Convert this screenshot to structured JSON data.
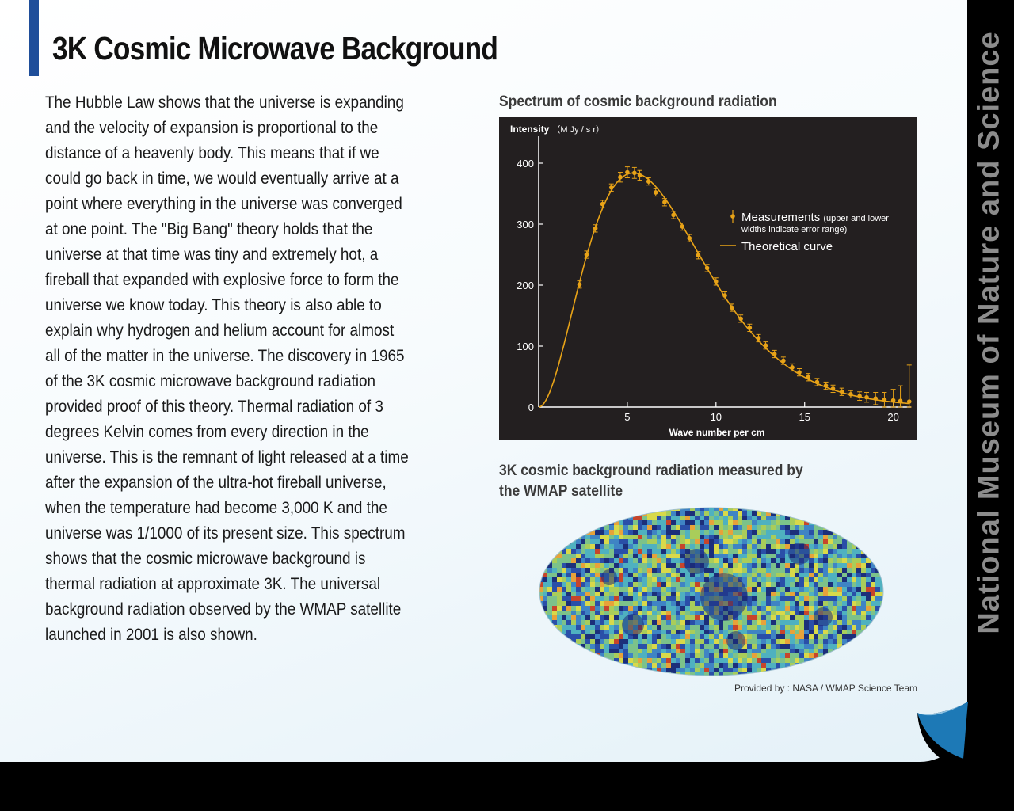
{
  "page": {
    "title": "3K Cosmic Microwave Background",
    "body_lines": [
      "The Hubble Law shows that the universe is expanding",
      "and the velocity of expansion is proportional to the",
      "distance of a heavenly body. This means that if we",
      "could go back in time, we would eventually arrive at a",
      "point where everything in the universe was converged",
      "at one point. The \"Big Bang\" theory holds that the",
      "universe at that time was tiny and extremely hot, a",
      "fireball that expanded with explosive force to form the",
      "universe we know today. This theory is also able to",
      "explain why hydrogen and helium account for almost",
      "all of the matter in the universe. The discovery in 1965",
      "of the 3K cosmic microwave background radiation",
      "provided proof of this theory. Thermal radiation of 3",
      "degrees Kelvin comes from every direction in the",
      "universe. This is the remnant of light released at a time",
      "after the expansion of the ultra-hot fireball universe,",
      "when the temperature had become 3,000 K and the",
      "universe was 1/1000 of its present size. This spectrum",
      "shows that the cosmic microwave background is",
      "thermal radiation at approximate 3K. The universal",
      "background radiation observed by the WMAP satellite",
      "launched in 2001 is also shown."
    ],
    "chart_caption": "Spectrum of cosmic background radiation",
    "map_caption_lines": [
      "3K cosmic background radiation measured by",
      "the WMAP satellite"
    ],
    "credit": "Provided by : NASA / WMAP Science Team",
    "sidebar_label": "National Museum of Nature and Science"
  },
  "colors": {
    "accent_bar": "#1f4e9a",
    "chart_bg": "#231f20",
    "curve": "#e8a317",
    "sidebar_text": "#8c8c8c",
    "page_curl": "#1f7fc0"
  },
  "chart_data": {
    "type": "line",
    "ylabel": "Intensity",
    "yunit": "（M Jy / s r）",
    "xlabel": "Wave number  per cm",
    "xlim": [
      0,
      21
    ],
    "ylim": [
      0,
      420
    ],
    "yticks": [
      0,
      100,
      200,
      300,
      400
    ],
    "xticks": [
      5,
      10,
      15,
      20
    ],
    "legend": {
      "position": "right",
      "measurements_label": "Measurements",
      "measurements_note_1": "(upper and lower",
      "measurements_note_2": "widths indicate error range)",
      "curve_label": "Theoretical curve"
    },
    "series": [
      {
        "name": "Measurements",
        "kind": "points-with-error",
        "x": [
          2.3,
          2.7,
          3.2,
          3.6,
          4.1,
          4.6,
          5.0,
          5.4,
          5.7,
          6.2,
          6.6,
          7.1,
          7.6,
          8.1,
          8.5,
          9.0,
          9.5,
          10.0,
          10.5,
          10.9,
          11.4,
          11.9,
          12.4,
          12.8,
          13.3,
          13.8,
          14.3,
          14.7,
          15.2,
          15.7,
          16.2,
          16.6,
          17.1,
          17.6,
          18.1,
          18.5,
          19.0,
          19.5,
          20.0,
          20.4,
          20.9
        ],
        "y": [
          201,
          250,
          293,
          333,
          360,
          377,
          385,
          384,
          380,
          370,
          352,
          336,
          315,
          296,
          277,
          249,
          228,
          206,
          183,
          163,
          145,
          130,
          113,
          101,
          87,
          76,
          65,
          57,
          49,
          41,
          35,
          30,
          25,
          21,
          18,
          16,
          14,
          12,
          11,
          10,
          9
        ],
        "err": [
          6,
          6,
          6,
          6,
          6,
          8,
          9,
          9,
          8,
          6,
          6,
          6,
          6,
          6,
          6,
          6,
          6,
          6,
          6,
          6,
          6,
          6,
          6,
          6,
          6,
          6,
          6,
          6,
          6,
          6,
          6,
          6,
          6,
          6,
          7,
          8,
          10,
          12,
          18,
          25,
          60
        ]
      },
      {
        "name": "Theoretical curve",
        "kind": "line",
        "model": "planck",
        "temperature_K": 2.725
      }
    ]
  }
}
